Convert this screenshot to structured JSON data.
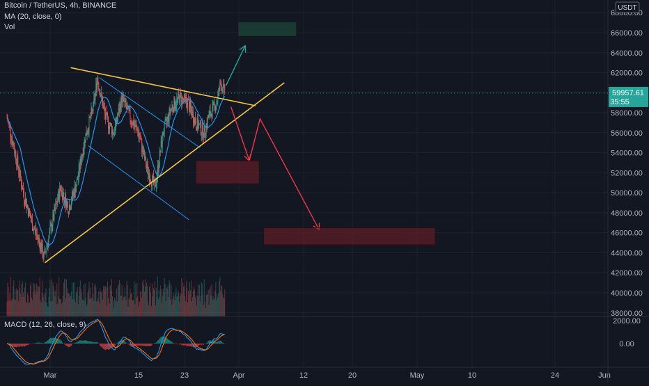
{
  "header": {
    "symbol_line": "Bitcoin / TetherUS, 4h, BINANCE",
    "ma_legend": "MA (20, close, 0)",
    "vol_legend": "Vol",
    "macd_legend": "MACD (12, 26, close, 9)"
  },
  "price_axis": {
    "currency": "USDT",
    "last_price": "59957.61",
    "countdown": "35:55"
  },
  "colors": {
    "background": "#131722",
    "up": "#26a69a",
    "down": "#ef5350",
    "ma": "#2196f3",
    "triangle": "#f5c543",
    "channel": "#2196f3",
    "arrow_up": "#26a69a",
    "arrow_down": "#f23645",
    "macd_line": "#2196f3",
    "signal_line": "#ff6d00"
  },
  "chart_data": [
    {
      "type": "candlestick",
      "interval": "4h",
      "x_ticks": [
        "Mar",
        "15",
        "23",
        "Apr",
        "12",
        "20",
        "May",
        "10",
        "24",
        "Jun"
      ],
      "y_ticks": [
        "38000.00",
        "40000.00",
        "42000.00",
        "44000.00",
        "46000.00",
        "48000.00",
        "50000.00",
        "52000.00",
        "54000.00",
        "56000.00",
        "58000.00",
        "60000.00",
        "62000.00",
        "64000.00",
        "66000.00",
        "68000.00"
      ],
      "ylim": [
        37000,
        69000
      ],
      "last_price": 59957.61,
      "close_path": [
        {
          "day": 0,
          "price": 57500
        },
        {
          "day": 2,
          "price": 54000
        },
        {
          "day": 4,
          "price": 50000
        },
        {
          "day": 6,
          "price": 47000
        },
        {
          "day": 8,
          "price": 45000
        },
        {
          "day": 9,
          "price": 43500
        },
        {
          "day": 11,
          "price": 47000
        },
        {
          "day": 13,
          "price": 50500
        },
        {
          "day": 15,
          "price": 48500
        },
        {
          "day": 17,
          "price": 51000
        },
        {
          "day": 19,
          "price": 55500
        },
        {
          "day": 21,
          "price": 58500
        },
        {
          "day": 22,
          "price": 61500
        },
        {
          "day": 24,
          "price": 57500
        },
        {
          "day": 26,
          "price": 56000
        },
        {
          "day": 28,
          "price": 59500
        },
        {
          "day": 30,
          "price": 57500
        },
        {
          "day": 32,
          "price": 56000
        },
        {
          "day": 34,
          "price": 52500
        },
        {
          "day": 36,
          "price": 50500
        },
        {
          "day": 38,
          "price": 56000
        },
        {
          "day": 40,
          "price": 58500
        },
        {
          "day": 42,
          "price": 59500
        },
        {
          "day": 44,
          "price": 59000
        },
        {
          "day": 46,
          "price": 57000
        },
        {
          "day": 48,
          "price": 56000
        },
        {
          "day": 49,
          "price": 57500
        },
        {
          "day": 51,
          "price": 59000
        },
        {
          "day": 52,
          "price": 61000
        },
        {
          "day": 53,
          "price": 59957
        }
      ],
      "drawings": {
        "triangle_upper": [
          [
            15.5,
            62500
          ],
          [
            60.5,
            58700
          ]
        ],
        "triangle_lower": [
          [
            9.2,
            43000
          ],
          [
            67.5,
            61000
          ]
        ],
        "channel_upper": [
          [
            22.5,
            61500
          ],
          [
            47,
            54500
          ]
        ],
        "channel_lower": [
          [
            19.8,
            54700
          ],
          [
            44.3,
            47300
          ]
        ],
        "arrow_up": [
          [
            53.3,
            60700
          ],
          [
            58,
            64700
          ]
        ],
        "arrow_down": [
          [
            54.5,
            58600
          ],
          [
            59,
            53200
          ],
          [
            61.6,
            57400
          ],
          [
            76,
            46300
          ]
        ],
        "target_box": [
          [
            56.4,
            67000
          ],
          [
            70.3,
            65700
          ]
        ],
        "zone_box_1": [
          [
            46,
            53200
          ],
          [
            61.4,
            50900
          ]
        ],
        "zone_box_2": [
          [
            62.5,
            46500
          ],
          [
            104.2,
            44800
          ]
        ]
      }
    },
    {
      "type": "bar",
      "name": "Vol",
      "note_series": "volume histogram"
    },
    {
      "type": "line",
      "name": "MACD (12, 26, close, 9)",
      "y_ticks": [
        "2000.00",
        "0.00"
      ]
    }
  ]
}
